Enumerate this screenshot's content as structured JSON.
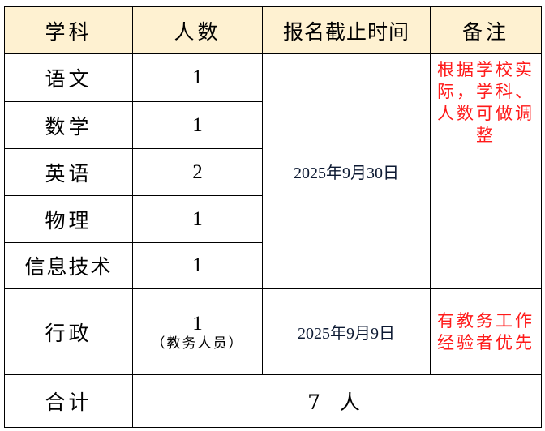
{
  "headers": [
    "学科",
    "人数",
    "报名截止时间",
    "备注"
  ],
  "rows": [
    {
      "subject": "语文",
      "count": "1"
    },
    {
      "subject": "数学",
      "count": "1"
    },
    {
      "subject": "英语",
      "count": "2"
    },
    {
      "subject": "物理",
      "count": "1"
    },
    {
      "subject": "信息技术",
      "count": "1"
    }
  ],
  "teacher_deadline": "2025年9月30日",
  "teacher_note": "根据学校实际，学科、人数可做调整",
  "admin": {
    "subject": "行政",
    "count": "1",
    "count_note": "（教务人员）",
    "deadline": "2025年9月9日",
    "note": "有教务工作经验者优先"
  },
  "total": {
    "label": "合计",
    "value": "7 人"
  },
  "colors": {
    "header_bg": "#FEF1D1",
    "note_text": "#ff1a1a"
  }
}
